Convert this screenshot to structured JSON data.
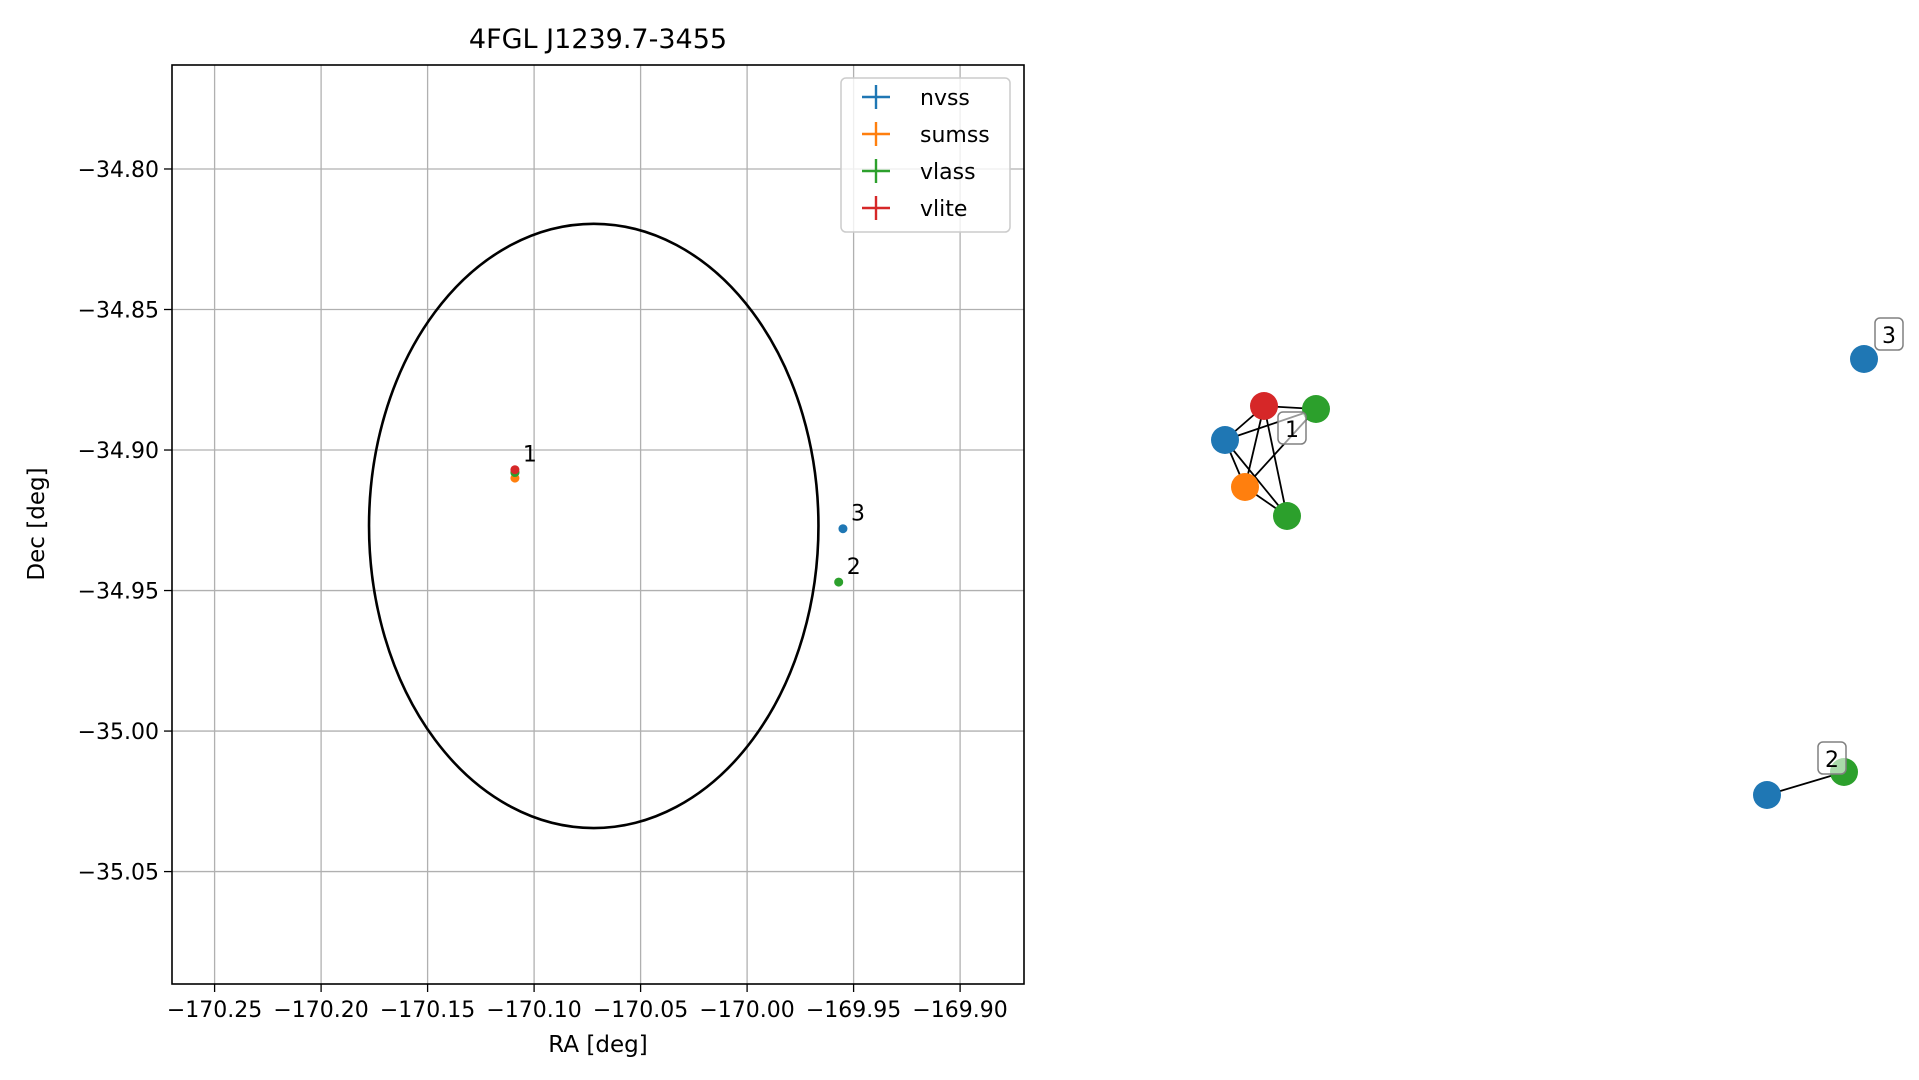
{
  "chart_data": [
    {
      "type": "scatter",
      "title": "4FGL J1239.7-3455",
      "xlabel": "RA [deg]",
      "ylabel": "Dec [deg]",
      "xlim": [
        -170.27,
        -169.87
      ],
      "ylim": [
        -35.09,
        -34.763
      ],
      "xticks": [
        -170.25,
        -170.2,
        -170.15,
        -170.1,
        -170.05,
        -170.0,
        -169.95,
        -169.9
      ],
      "xtick_labels": [
        "−170.25",
        "−170.20",
        "−170.15",
        "−170.10",
        "−170.05",
        "−170.00",
        "−169.95",
        "−169.90"
      ],
      "yticks": [
        -34.8,
        -34.85,
        -34.9,
        -34.95,
        -35.0,
        -35.05
      ],
      "ytick_labels": [
        "−34.80",
        "−34.85",
        "−34.90",
        "−34.95",
        "−35.00",
        "−35.05"
      ],
      "grid": true,
      "legend": "top-right",
      "ellipse": {
        "center": [
          -170.072,
          -34.927
        ],
        "half_width_ra": 0.1055,
        "half_height_dec": 0.1075
      },
      "series": [
        {
          "name": "nvss",
          "color": "#1f77b4",
          "points": [
            {
              "x": -170.109,
              "y": -34.908,
              "xerr": 0.0007,
              "yerr": 0.0007
            },
            {
              "x": -169.955,
              "y": -34.928,
              "xerr": 0.0015,
              "yerr": 0.0015
            }
          ]
        },
        {
          "name": "sumss",
          "color": "#ff7f0e",
          "points": [
            {
              "x": -170.109,
              "y": -34.91,
              "xerr": 0.0007,
              "yerr": 0.0007
            }
          ]
        },
        {
          "name": "vlass",
          "color": "#2ca02c",
          "points": [
            {
              "x": -170.109,
              "y": -34.908,
              "xerr": 0.0004,
              "yerr": 0.0004
            },
            {
              "x": -169.957,
              "y": -34.947,
              "xerr": 0.0007,
              "yerr": 0.0007
            }
          ]
        },
        {
          "name": "vlite",
          "color": "#d62728",
          "points": [
            {
              "x": -170.109,
              "y": -34.907,
              "xerr": 0.0006,
              "yerr": 0.0006
            }
          ]
        }
      ],
      "annotations": [
        {
          "text": "1",
          "x": -170.109,
          "y": -34.907
        },
        {
          "text": "3",
          "x": -169.955,
          "y": -34.928
        },
        {
          "text": "2",
          "x": -169.957,
          "y": -34.947
        }
      ]
    },
    {
      "type": "network",
      "nodes": [
        {
          "id": "n_blue_1",
          "color": "#1f77b4"
        },
        {
          "id": "n_red_1",
          "color": "#d62728"
        },
        {
          "id": "n_green_1a",
          "color": "#2ca02c"
        },
        {
          "id": "n_orange_1",
          "color": "#ff7f0e"
        },
        {
          "id": "n_green_1b",
          "color": "#2ca02c"
        },
        {
          "id": "n_blue_3",
          "color": "#1f77b4"
        },
        {
          "id": "n_blue_2",
          "color": "#1f77b4"
        },
        {
          "id": "n_green_2",
          "color": "#2ca02c"
        }
      ],
      "edges": [
        [
          "n_blue_1",
          "n_red_1"
        ],
        [
          "n_blue_1",
          "n_green_1a"
        ],
        [
          "n_blue_1",
          "n_orange_1"
        ],
        [
          "n_blue_1",
          "n_green_1b"
        ],
        [
          "n_red_1",
          "n_green_1a"
        ],
        [
          "n_red_1",
          "n_orange_1"
        ],
        [
          "n_red_1",
          "n_green_1b"
        ],
        [
          "n_green_1a",
          "n_orange_1"
        ],
        [
          "n_orange_1",
          "n_green_1b"
        ],
        [
          "n_blue_2",
          "n_green_2"
        ]
      ],
      "group_labels": [
        {
          "text": "1",
          "anchor": "n_green_1a"
        },
        {
          "text": "3",
          "anchor": "n_blue_3"
        },
        {
          "text": "2",
          "anchor": "n_green_2"
        }
      ]
    }
  ]
}
